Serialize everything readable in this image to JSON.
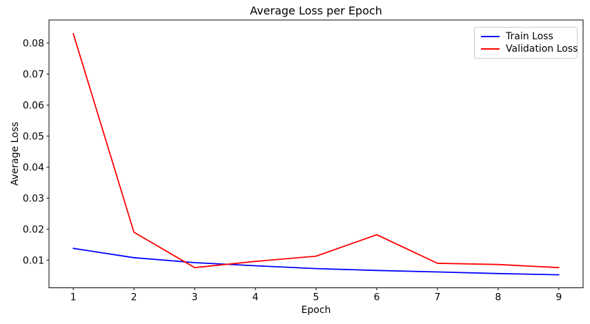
{
  "chart_data": {
    "type": "line",
    "title": "Average Loss per Epoch",
    "xlabel": "Epoch",
    "ylabel": "Average Loss",
    "x": [
      1,
      2,
      3,
      4,
      5,
      6,
      7,
      8,
      9
    ],
    "series": [
      {
        "name": "Train Loss",
        "color": "#0000ff",
        "values": [
          0.0138,
          0.0108,
          0.0092,
          0.0082,
          0.0073,
          0.0067,
          0.0062,
          0.0057,
          0.0053
        ]
      },
      {
        "name": "Validation Loss",
        "color": "#ff0000",
        "values": [
          0.083,
          0.019,
          0.0076,
          0.0096,
          0.0113,
          0.0182,
          0.009,
          0.0086,
          0.0076
        ]
      }
    ],
    "xticks": [
      1,
      2,
      3,
      4,
      5,
      6,
      7,
      8,
      9
    ],
    "yticks": [
      0.01,
      0.02,
      0.03,
      0.04,
      0.05,
      0.06,
      0.07,
      0.08
    ],
    "xlim": [
      0.6,
      9.4
    ],
    "ylim": [
      0.0011,
      0.0874
    ],
    "legend_position": "upper right",
    "grid": false,
    "line_color_axis": "#000000"
  }
}
